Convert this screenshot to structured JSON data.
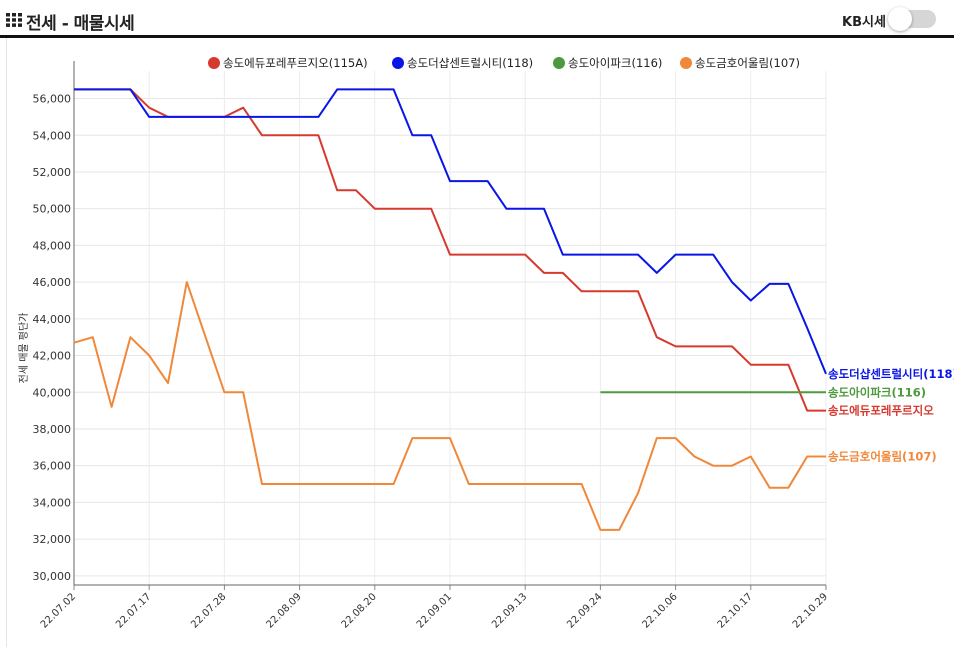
{
  "header": {
    "title": "전세 - 매물시세",
    "kb_label": "KB시세",
    "kb_toggle_on": false
  },
  "chart_data": {
    "type": "line",
    "ylabel": "전세 매물 평단가",
    "ylim": [
      29500,
      57500
    ],
    "yticks": [
      "30,000",
      "32,000",
      "34,000",
      "36,000",
      "38,000",
      "40,000",
      "42,000",
      "44,000",
      "46,000",
      "48,000",
      "50,000",
      "52,000",
      "54,000",
      "56,000"
    ],
    "ytick_values": [
      30000,
      32000,
      34000,
      36000,
      38000,
      40000,
      42000,
      44000,
      46000,
      48000,
      50000,
      52000,
      54000,
      56000
    ],
    "xticks": [
      "22.07.02",
      "22.07.17",
      "22.07.28",
      "22.08.09",
      "22.08.20",
      "22.09.01",
      "22.09.13",
      "22.09.24",
      "22.10.06",
      "22.10.17",
      "22.10.29"
    ],
    "n_points": 41,
    "grid": true,
    "legend_position": "top",
    "series": [
      {
        "name": "송도에듀포레푸르지오(115A)",
        "end_label": "송도에듀포레푸르지오",
        "color": "#d63a2f",
        "values": [
          [
            0,
            56500
          ],
          [
            1,
            56500
          ],
          [
            2,
            56500
          ],
          [
            3,
            56500
          ],
          [
            4,
            55500
          ],
          [
            5,
            55000
          ],
          [
            6,
            55000
          ],
          [
            7,
            55000
          ],
          [
            8,
            55000
          ],
          [
            9,
            55500
          ],
          [
            10,
            54000
          ],
          [
            11,
            54000
          ],
          [
            12,
            54000
          ],
          [
            13,
            54000
          ],
          [
            14,
            51000
          ],
          [
            15,
            51000
          ],
          [
            16,
            50000
          ],
          [
            17,
            50000
          ],
          [
            18,
            50000
          ],
          [
            19,
            50000
          ],
          [
            20,
            47500
          ],
          [
            21,
            47500
          ],
          [
            22,
            47500
          ],
          [
            23,
            47500
          ],
          [
            24,
            47500
          ],
          [
            25,
            46500
          ],
          [
            26,
            46500
          ],
          [
            27,
            45500
          ],
          [
            28,
            45500
          ],
          [
            29,
            45500
          ],
          [
            30,
            45500
          ],
          [
            31,
            43000
          ],
          [
            32,
            42500
          ],
          [
            33,
            42500
          ],
          [
            34,
            42500
          ],
          [
            35,
            42500
          ],
          [
            36,
            41500
          ],
          [
            37,
            41500
          ],
          [
            38,
            41500
          ],
          [
            39,
            39000
          ],
          [
            40,
            39000
          ]
        ]
      },
      {
        "name": "송도더샵센트럴시티(118)",
        "end_label": "송도더샵센트럴시티(118)",
        "color": "#0a16e6",
        "values": [
          [
            0,
            56500
          ],
          [
            1,
            56500
          ],
          [
            2,
            56500
          ],
          [
            3,
            56500
          ],
          [
            4,
            55000
          ],
          [
            5,
            55000
          ],
          [
            6,
            55000
          ],
          [
            7,
            55000
          ],
          [
            8,
            55000
          ],
          [
            9,
            55000
          ],
          [
            10,
            55000
          ],
          [
            11,
            55000
          ],
          [
            12,
            55000
          ],
          [
            13,
            55000
          ],
          [
            14,
            56500
          ],
          [
            15,
            56500
          ],
          [
            16,
            56500
          ],
          [
            17,
            56500
          ],
          [
            18,
            54000
          ],
          [
            19,
            54000
          ],
          [
            20,
            51500
          ],
          [
            21,
            51500
          ],
          [
            22,
            51500
          ],
          [
            23,
            50000
          ],
          [
            24,
            50000
          ],
          [
            25,
            50000
          ],
          [
            26,
            47500
          ],
          [
            27,
            47500
          ],
          [
            28,
            47500
          ],
          [
            29,
            47500
          ],
          [
            30,
            47500
          ],
          [
            31,
            46500
          ],
          [
            32,
            47500
          ],
          [
            33,
            47500
          ],
          [
            34,
            47500
          ],
          [
            35,
            46000
          ],
          [
            36,
            45000
          ],
          [
            37,
            45900
          ],
          [
            38,
            45900
          ],
          [
            39,
            43500
          ],
          [
            40,
            41000
          ]
        ]
      },
      {
        "name": "송도아이파크(116)",
        "end_label": "송도아이파크(116)",
        "color": "#4d9a3c",
        "values": [
          [
            28,
            40000
          ],
          [
            29,
            40000
          ],
          [
            30,
            40000
          ],
          [
            31,
            40000
          ],
          [
            32,
            40000
          ],
          [
            33,
            40000
          ],
          [
            34,
            40000
          ],
          [
            35,
            40000
          ],
          [
            36,
            40000
          ],
          [
            37,
            40000
          ],
          [
            38,
            40000
          ],
          [
            39,
            40000
          ],
          [
            40,
            40000
          ]
        ]
      },
      {
        "name": "송도금호어울림(107)",
        "end_label": "송도금호어울림(107)",
        "color": "#f0883a",
        "values": [
          [
            0,
            42700
          ],
          [
            1,
            43000
          ],
          [
            2,
            39200
          ],
          [
            3,
            43000
          ],
          [
            4,
            42000
          ],
          [
            5,
            40500
          ],
          [
            6,
            46000
          ],
          [
            7,
            43000
          ],
          [
            8,
            40000
          ],
          [
            9,
            40000
          ],
          [
            10,
            35000
          ],
          [
            11,
            35000
          ],
          [
            12,
            35000
          ],
          [
            13,
            35000
          ],
          [
            14,
            35000
          ],
          [
            15,
            35000
          ],
          [
            16,
            35000
          ],
          [
            17,
            35000
          ],
          [
            18,
            37500
          ],
          [
            19,
            37500
          ],
          [
            20,
            37500
          ],
          [
            21,
            35000
          ],
          [
            22,
            35000
          ],
          [
            23,
            35000
          ],
          [
            24,
            35000
          ],
          [
            25,
            35000
          ],
          [
            26,
            35000
          ],
          [
            27,
            35000
          ],
          [
            28,
            32500
          ],
          [
            29,
            32500
          ],
          [
            30,
            34500
          ],
          [
            31,
            37500
          ],
          [
            32,
            37500
          ],
          [
            33,
            36500
          ],
          [
            34,
            36000
          ],
          [
            35,
            36000
          ],
          [
            36,
            36500
          ],
          [
            37,
            34800
          ],
          [
            38,
            34800
          ],
          [
            39,
            36500
          ],
          [
            40,
            36500
          ]
        ]
      }
    ]
  }
}
